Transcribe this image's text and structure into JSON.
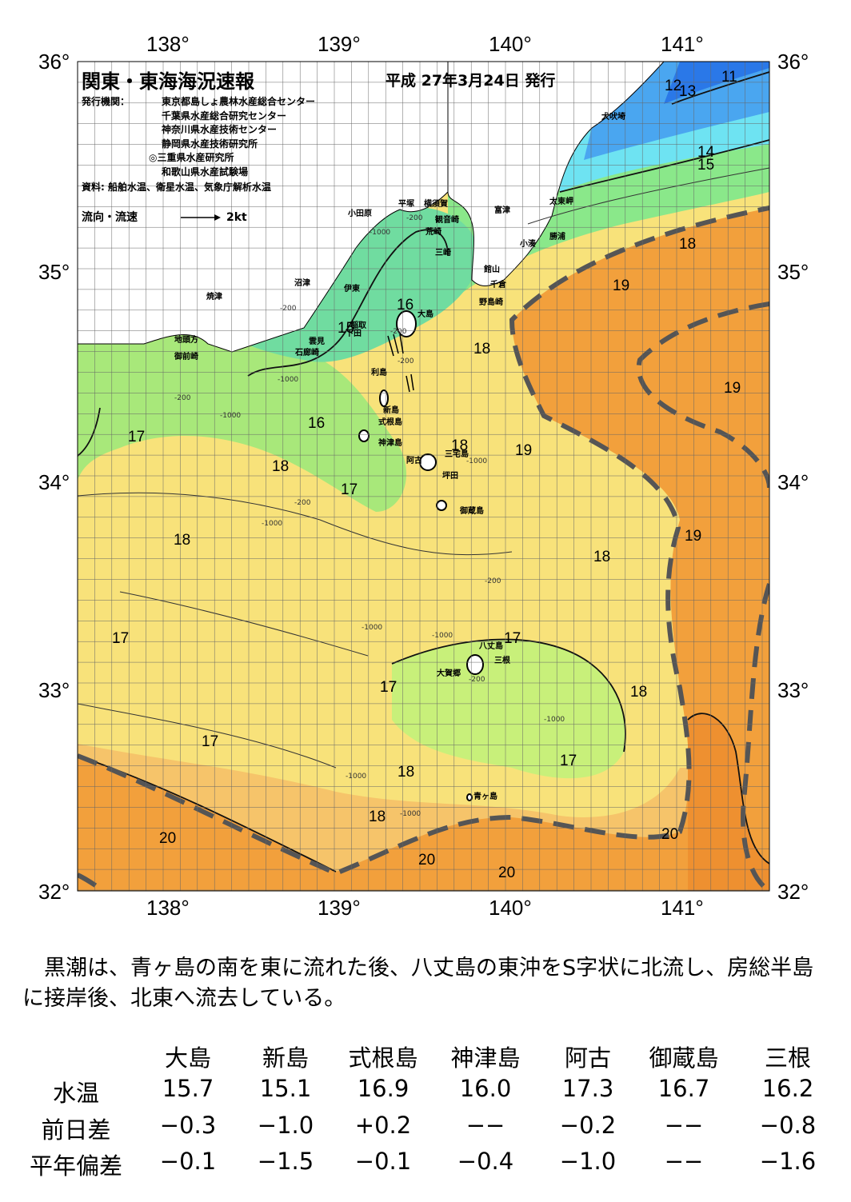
{
  "title": "関東・東海海況速報",
  "issue_date": "平成 27年3月24日 発行",
  "publisher_label": "発行機関：",
  "publishers": [
    "東京都島しょ農林水産総合センター",
    "千葉県水産総合研究センター",
    "神奈川県水産技術センター",
    "静岡県水産技術研究所",
    "◎三重県水産研究所",
    "和歌山県水産試験場"
  ],
  "sources": "資料: 船舶水温、衛星水温、気象庁解析水温",
  "legend": {
    "label": "流向・流速",
    "scale": "2kt"
  },
  "axes": {
    "lon_top": [
      "138°",
      "139°",
      "140°",
      "141°"
    ],
    "lon_bottom": [
      "138°",
      "139°",
      "140°",
      "141°"
    ],
    "lat_left": [
      "36°",
      "35°",
      "34°",
      "33°",
      "32°"
    ],
    "lat_right": [
      "36°",
      "35°",
      "34°",
      "33°",
      "32°"
    ]
  },
  "places": [
    "犬吠埼",
    "太東岬",
    "勝浦",
    "小湊",
    "富津",
    "館山",
    "千倉",
    "野島崎",
    "横須賀",
    "観音崎",
    "平塚",
    "荒崎",
    "三崎",
    "小田原",
    "沼津",
    "伊東",
    "焼津",
    "大島",
    "稲取",
    "下田",
    "雲見",
    "石廊崎",
    "地頭方",
    "御前崎",
    "利島",
    "新島",
    "式根島",
    "神津島",
    "三宅島",
    "阿古",
    "坪田",
    "御蔵島",
    "八丈島",
    "三根",
    "大賀郷",
    "青ヶ島"
  ],
  "isotherm_labels": [
    "11",
    "12",
    "13",
    "14",
    "15",
    "16",
    "15",
    "18",
    "18",
    "19",
    "19",
    "19",
    "16",
    "17",
    "18",
    "17",
    "18",
    "19",
    "18",
    "17",
    "17",
    "17",
    "17",
    "18",
    "17",
    "17",
    "18",
    "18",
    "20",
    "20",
    "20",
    "20"
  ],
  "depth_labels": [
    "-200",
    "-1000",
    "-200",
    "-200",
    "-200",
    "-1000",
    "-200",
    "-1000",
    "-200",
    "-1000",
    "-1000",
    "-1000",
    "-1000",
    "-1000",
    "-200",
    "-1000",
    "-200",
    "-1000"
  ],
  "summary": "黒潮は、青ヶ島の南を東に流れた後、八丈島の東沖をS字状に北流し、房総半島に接岸後、北東へ流去している。",
  "table": {
    "columns": [
      "大島",
      "新島",
      "式根島",
      "神津島",
      "阿古",
      "御蔵島",
      "三根"
    ],
    "rows": [
      {
        "label": "水温",
        "values": [
          "15.7",
          "15.1",
          "16.9",
          "16.0",
          "17.3",
          "16.7",
          "16.2"
        ]
      },
      {
        "label": "前日差",
        "values": [
          "−0.3",
          "−1.0",
          "+0.2",
          "−−",
          "−0.2",
          "−−",
          "−0.8"
        ]
      },
      {
        "label": "平年偏差",
        "values": [
          "−0.1",
          "−1.5",
          "−0.1",
          "−0.4",
          "−1.0",
          "−−",
          "−1.6"
        ]
      }
    ]
  },
  "colors": {
    "land": "#ffffff",
    "sea_cold": "#2a78e8",
    "sea_cyan": "#6ee3f2",
    "sea_teal": "#55e0c0",
    "sea_green": "#86e27c",
    "sea_lightgreen": "#c8f07a",
    "sea_yellow": "#f8e27a",
    "sea_lightorange": "#f6c46a",
    "sea_orange": "#f2a03c",
    "sea_deeporange": "#ee9030",
    "kuroshio_axis": "#555555"
  }
}
